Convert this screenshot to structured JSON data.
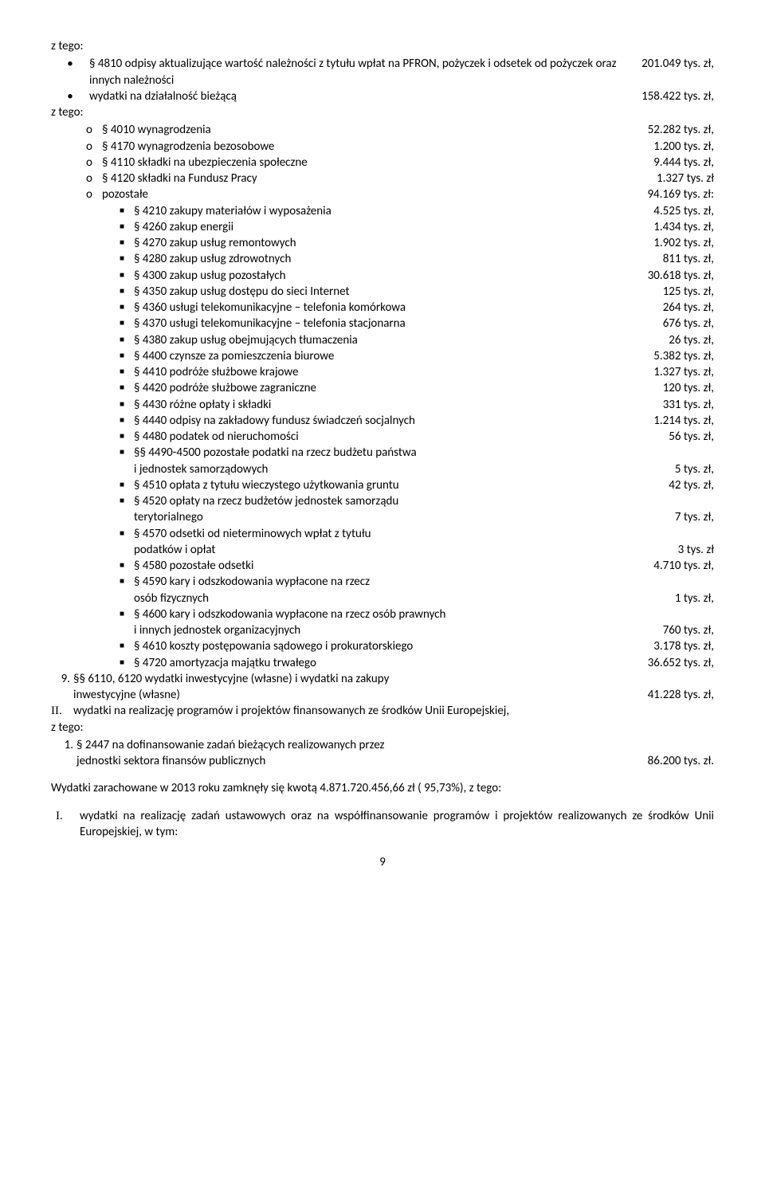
{
  "top_label": "z tego:",
  "bullets": [
    {
      "label": "§ 4810 odpisy aktualizujące wartość należności z tytułu wpłat na PFRON, pożyczek i odsetek od pożyczek oraz innych należności",
      "value": "201.049 tys. zł,"
    },
    {
      "label": "wydatki na działalność bieżącą",
      "value": "158.422 tys. zł,"
    }
  ],
  "sub_ztego": "z tego:",
  "circles": [
    {
      "label": "§ 4010 wynagrodzenia",
      "value": "52.282 tys. zł,"
    },
    {
      "label": "§ 4170 wynagrodzenia bezosobowe",
      "value": "1.200 tys. zł,"
    },
    {
      "label": "§ 4110 składki na ubezpieczenia społeczne",
      "value": "9.444 tys. zł,"
    },
    {
      "label": "§ 4120 składki na Fundusz Pracy",
      "value": "1.327 tys. zł"
    },
    {
      "label": "pozostałe",
      "value": "94.169 tys. zł:"
    }
  ],
  "squares": [
    {
      "label": "§ 4210 zakupy materiałów i wyposażenia",
      "value": "4.525 tys. zł,"
    },
    {
      "label": "§ 4260 zakup energii",
      "value": "1.434 tys. zł,"
    },
    {
      "label": "§ 4270 zakup usług remontowych",
      "value": "1.902 tys. zł,"
    },
    {
      "label": "§ 4280 zakup usług zdrowotnych",
      "value": "811 tys. zł,"
    },
    {
      "label": "§ 4300 zakup usług pozostałych",
      "value": "30.618 tys. zł,"
    },
    {
      "label": "§ 4350 zakup usług dostępu do sieci Internet",
      "value": "125 tys. zł,"
    },
    {
      "label": "§ 4360 usługi telekomunikacyjne – telefonia komórkowa",
      "value": "264 tys. zł,"
    },
    {
      "label": "§ 4370 usługi telekomunikacyjne – telefonia stacjonarna",
      "value": "676 tys. zł,"
    },
    {
      "label": "§ 4380 zakup usług obejmujących tłumaczenia",
      "value": "26 tys. zł,"
    },
    {
      "label": "§ 4400 czynsze za pomieszczenia biurowe",
      "value": "5.382 tys. zł,"
    },
    {
      "label": "§ 4410 podróże służbowe krajowe",
      "value": "1.327 tys. zł,"
    },
    {
      "label": "§ 4420 podróże służbowe zagraniczne",
      "value": "120 tys. zł,"
    },
    {
      "label": "§ 4430 różne opłaty i składki",
      "value": "331 tys. zł,"
    },
    {
      "label": "§ 4440 odpisy na zakładowy fundusz świadczeń socjalnych",
      "value": "1.214 tys. zł,"
    },
    {
      "label": "§ 4480 podatek od nieruchomości",
      "value": "56 tys. zł,"
    },
    {
      "label": "§§ 4490-4500 pozostałe podatki na rzecz budżetu państwa",
      "value_line2_label": "i jednostek samorządowych",
      "value_line2_value": "5 tys. zł,"
    },
    {
      "label": "§ 4510 opłata z tytułu wieczystego użytkowania gruntu",
      "value": "42 tys. zł,"
    },
    {
      "label": "§ 4520 opłaty na rzecz budżetów jednostek samorządu",
      "value_line2_label": "terytorialnego",
      "value_line2_value": "7 tys. zł,"
    },
    {
      "label": "§ 4570 odsetki od nieterminowych wpłat z tytułu",
      "value_line2_label": "podatków i opłat",
      "value_line2_value": "3 tys. zł"
    },
    {
      "label": "§ 4580 pozostałe odsetki",
      "value": "4.710 tys. zł,"
    },
    {
      "label": "§ 4590 kary i odszkodowania wypłacone na rzecz",
      "value_line2_label": "osób fizycznych",
      "value_line2_value": "1 tys. zł,"
    },
    {
      "label": "§ 4600 kary i odszkodowania wypłacone na rzecz osób prawnych",
      "value_line2_label": "i innych jednostek organizacyjnych",
      "value_line2_value": "760 tys. zł,"
    },
    {
      "label": "§ 4610 koszty postępowania sądowego i prokuratorskiego",
      "value": "3.178 tys. zł,"
    },
    {
      "label": "§ 4720 amortyzacja majątku trwałego",
      "value": "36.652 tys. zł,"
    }
  ],
  "item9": {
    "num": "9.",
    "line1": "§§ 6110, 6120 wydatki inwestycyjne (własne) i wydatki na zakupy",
    "line2_label": "inwestycyjne (własne)",
    "line2_value": "41.228 tys. zł,"
  },
  "roman2": {
    "num": "II.",
    "text": "wydatki na realizację programów i projektów finansowanych ze środków Unii Europejskiej,"
  },
  "roman2_sub_ztego": "z tego:",
  "roman2_item1": {
    "num": "1.",
    "line1": "§ 2447 na dofinansowanie zadań bieżących realizowanych przez",
    "line2_label": "jednostki sektora finansów publicznych",
    "line2_value": "86.200 tys. zł."
  },
  "summary": "Wydatki zarachowane w 2013 roku zamknęły się kwotą 4.871.720.456,66 zł ( 95,73%), z tego:",
  "roman_I": {
    "num": "I.",
    "text": "wydatki na realizację zadań ustawowych oraz na współfinansowanie programów i projektów realizowanych ze środków Unii Europejskiej, w tym:"
  },
  "page_number": "9"
}
